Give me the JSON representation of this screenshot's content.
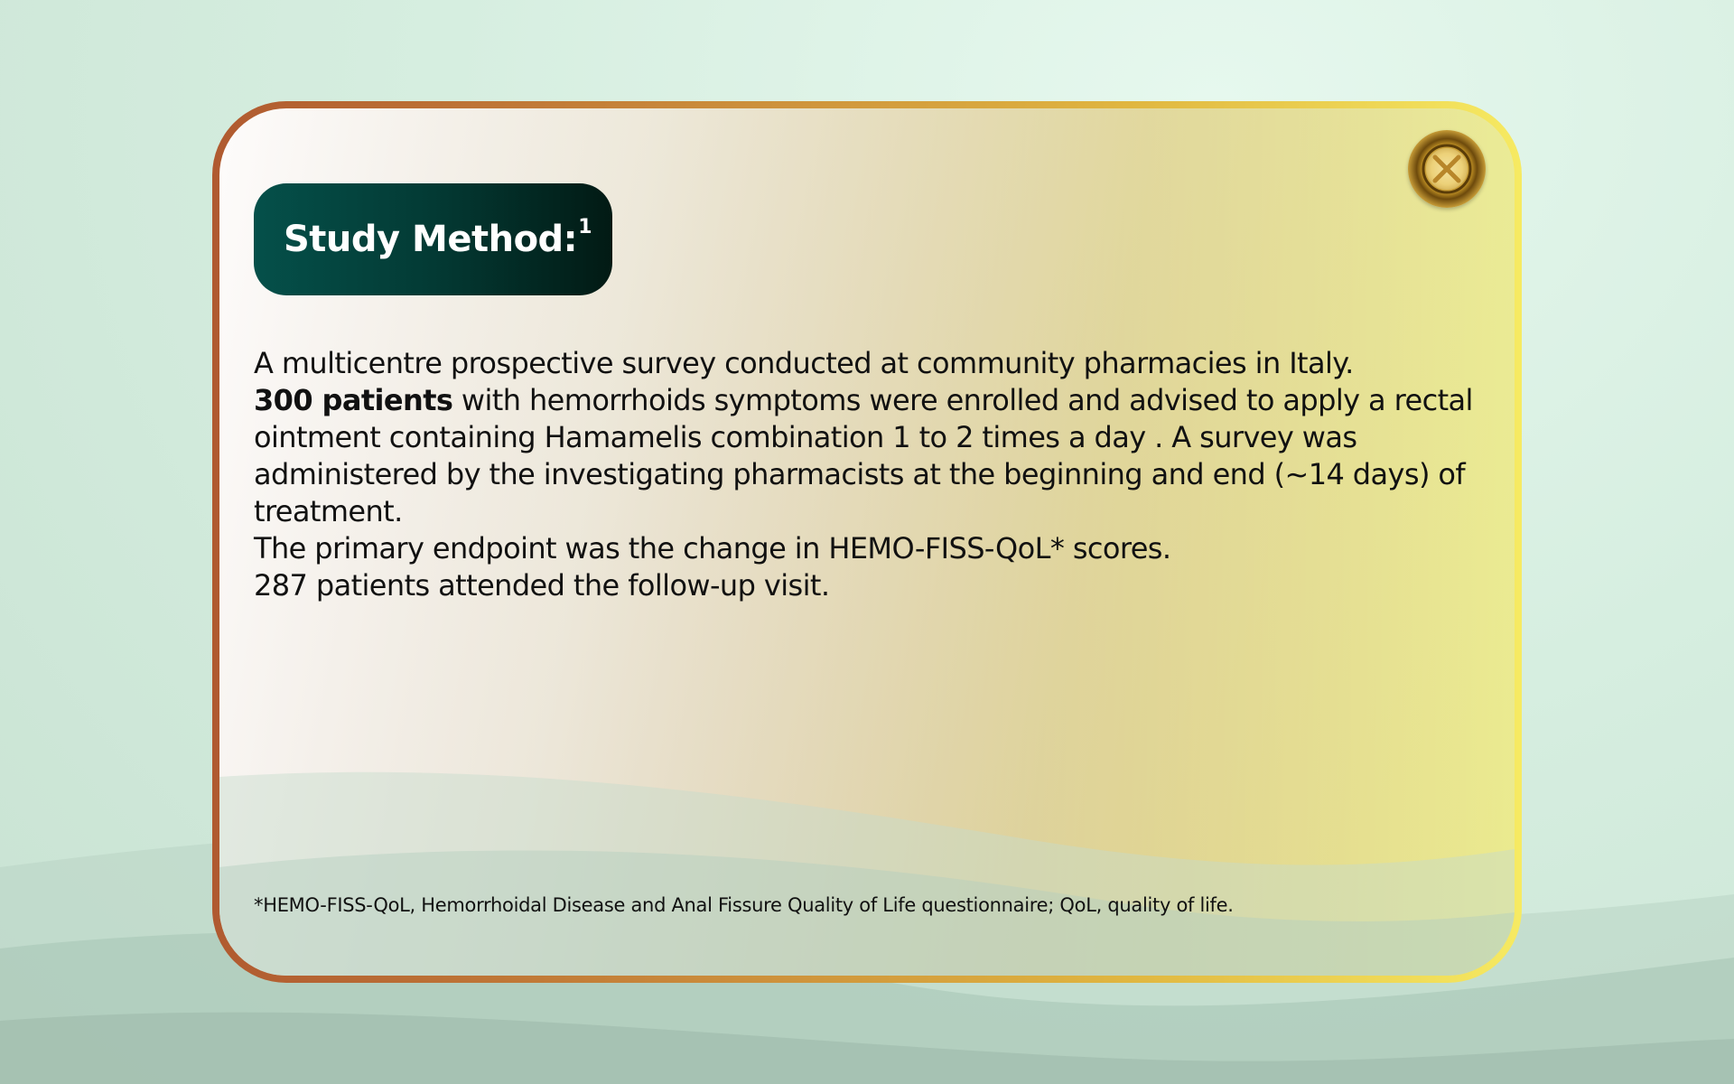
{
  "background": {
    "colors": [
      "#e6f8ee",
      "#d6eee0",
      "#c8e2d2"
    ]
  },
  "modal": {
    "border_gradient": [
      "#b05a30",
      "#c8873a",
      "#e0b640",
      "#f6ea62"
    ],
    "title": "Study Method:",
    "title_sup": "1",
    "paragraphs": {
      "p1": "A multicentre prospective survey conducted at community pharmacies in Italy.",
      "p2_bold": "300 patients",
      "p2_rest": " with hemorrhoids symptoms were enrolled  and advised to apply a rectal ointment containing Hamamelis combination 1 to 2 times a day . A survey was administered by the investigating pharmacists at the beginning and end (~14 days) of treatment.",
      "p3": "The primary endpoint was the change in HEMO-FISS-QoL* scores.",
      "p4": "287 patients attended the follow-up visit."
    },
    "footnote": "*HEMO-FISS-QoL, Hemorrhoidal Disease and Anal Fissure Quality of Life questionnaire; QoL, quality of life.",
    "close_icon": "close-icon"
  }
}
